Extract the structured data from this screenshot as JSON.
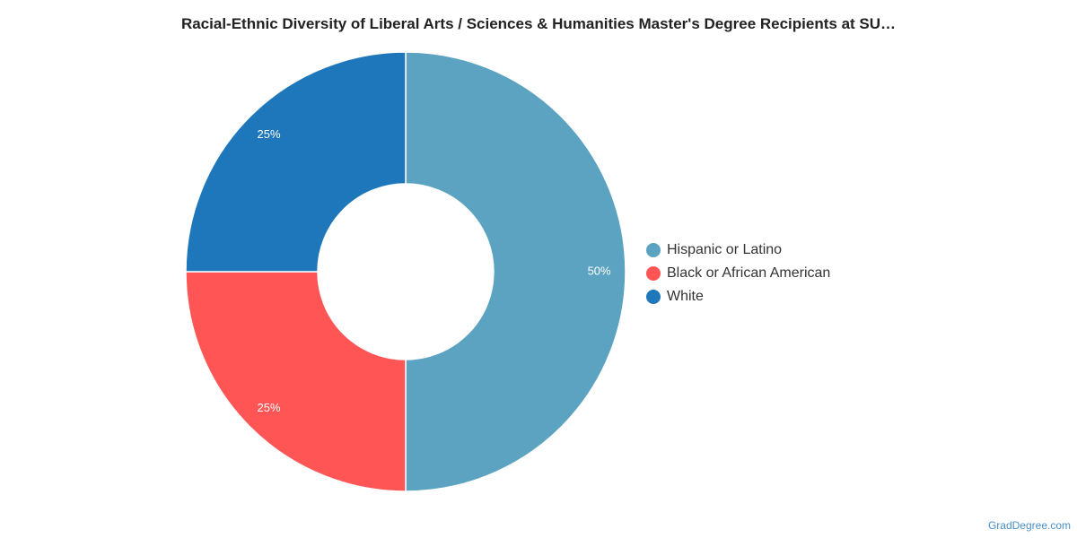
{
  "chart_data": {
    "type": "pie",
    "title": "Racial-Ethnic Diversity of Liberal Arts / Sciences & Humanities Master's Degree Recipients at SU…",
    "donut": true,
    "legend_position": "right",
    "slices": [
      {
        "label": "Hispanic or Latino",
        "value": 50,
        "value_label": "50%",
        "color": "#5ba3c0"
      },
      {
        "label": "Black or African American",
        "value": 25,
        "value_label": "25%",
        "color": "#ff5555"
      },
      {
        "label": "White",
        "value": 25,
        "value_label": "25%",
        "color": "#1f77bb"
      }
    ]
  },
  "credit": "GradDegree.com"
}
